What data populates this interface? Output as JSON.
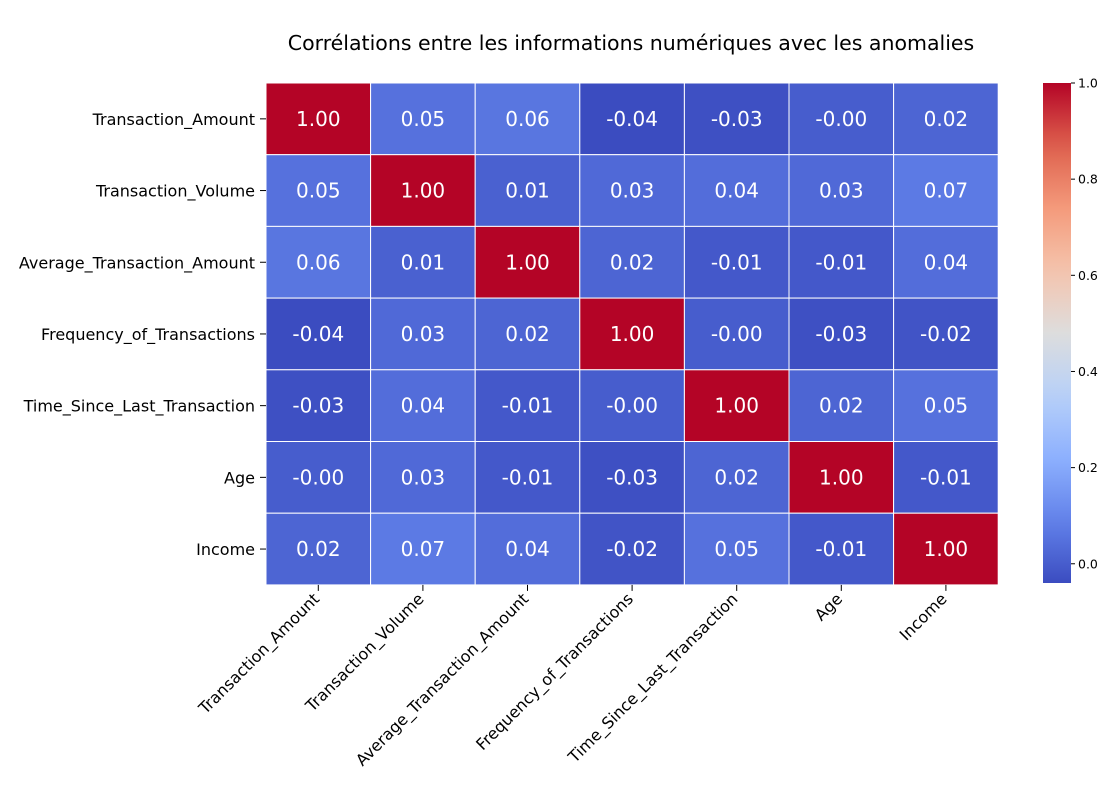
{
  "chart_data": {
    "type": "heatmap",
    "title": "Corrélations entre les informations numériques avec les anomalies",
    "xlabel": "",
    "ylabel": "",
    "colormap": "coolwarm",
    "annotation_format": "0.00",
    "cell_separator_color": "#ffffff",
    "annotation_color": "#ffffff",
    "rows": [
      "Transaction_Amount",
      "Transaction_Volume",
      "Average_Transaction_Amount",
      "Frequency_of_Transactions",
      "Time_Since_Last_Transaction",
      "Age",
      "Income"
    ],
    "columns": [
      "Transaction_Amount",
      "Transaction_Volume",
      "Average_Transaction_Amount",
      "Frequency_of_Transactions",
      "Time_Since_Last_Transaction",
      "Age",
      "Income"
    ],
    "values": [
      [
        1.0,
        0.05,
        0.06,
        -0.04,
        -0.03,
        -0.0,
        0.02
      ],
      [
        0.05,
        1.0,
        0.01,
        0.03,
        0.04,
        0.03,
        0.07
      ],
      [
        0.06,
        0.01,
        1.0,
        0.02,
        -0.01,
        -0.01,
        0.04
      ],
      [
        -0.04,
        0.03,
        0.02,
        1.0,
        -0.0,
        -0.03,
        -0.02
      ],
      [
        -0.03,
        0.04,
        -0.01,
        -0.0,
        1.0,
        0.02,
        0.05
      ],
      [
        -0.0,
        0.03,
        -0.01,
        -0.03,
        0.02,
        1.0,
        -0.01
      ],
      [
        0.02,
        0.07,
        0.04,
        -0.02,
        0.05,
        -0.01,
        1.0
      ]
    ],
    "value_labels": [
      [
        "1.00",
        "0.05",
        "0.06",
        "-0.04",
        "-0.03",
        "-0.00",
        "0.02"
      ],
      [
        "0.05",
        "1.00",
        "0.01",
        "0.03",
        "0.04",
        "0.03",
        "0.07"
      ],
      [
        "0.06",
        "0.01",
        "1.00",
        "0.02",
        "-0.01",
        "-0.01",
        "0.04"
      ],
      [
        "-0.04",
        "0.03",
        "0.02",
        "1.00",
        "-0.00",
        "-0.03",
        "-0.02"
      ],
      [
        "-0.03",
        "0.04",
        "-0.01",
        "-0.00",
        "1.00",
        "0.02",
        "0.05"
      ],
      [
        "-0.00",
        "0.03",
        "-0.01",
        "-0.03",
        "0.02",
        "1.00",
        "-0.01"
      ],
      [
        "0.02",
        "0.07",
        "0.04",
        "-0.02",
        "0.05",
        "-0.01",
        "1.00"
      ]
    ],
    "colorbar": {
      "vmin": -0.04,
      "vmax": 1.0,
      "ticks": [
        0.0,
        0.2,
        0.4,
        0.6,
        0.8,
        1.0
      ],
      "tick_labels": [
        "0.0",
        "0.2",
        "0.4",
        "0.6",
        "0.8",
        "1.0"
      ]
    }
  }
}
